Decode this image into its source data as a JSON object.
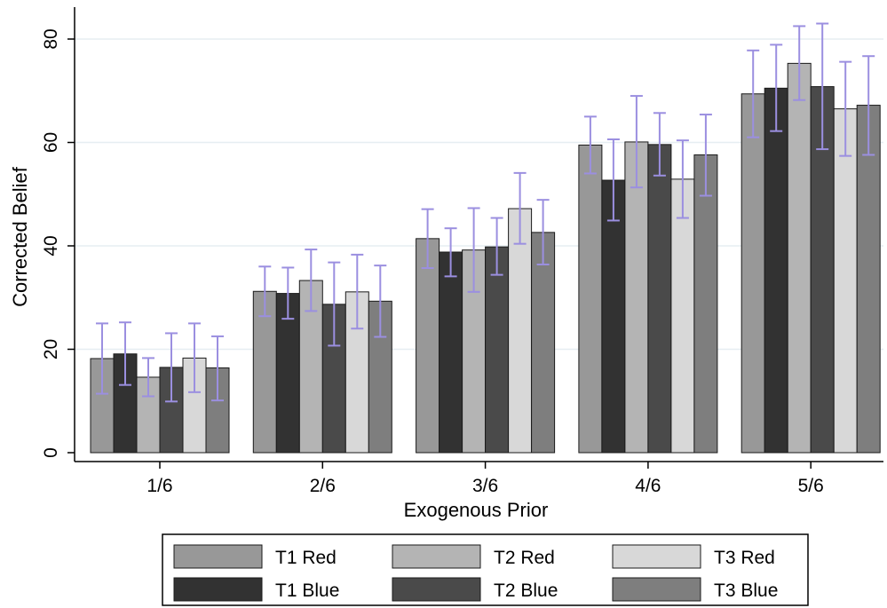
{
  "chart_data": {
    "type": "bar",
    "xlabel": "Exogenous Prior",
    "ylabel": "Corrected Belief",
    "ylim": [
      0,
      85
    ],
    "yticks": [
      0,
      20,
      40,
      60,
      80
    ],
    "categories": [
      "1/6",
      "2/6",
      "3/6",
      "4/6",
      "5/6"
    ],
    "grid": true,
    "legend_position": "bottom",
    "series": [
      {
        "name": "T1 Red",
        "color": "#989898",
        "values": [
          18.2,
          31.2,
          41.4,
          59.5,
          69.4
        ],
        "ci_low": [
          11.4,
          26.4,
          35.7,
          54.0,
          61.0
        ],
        "ci_high": [
          25.0,
          36.0,
          47.1,
          65.0,
          77.8
        ]
      },
      {
        "name": "T1 Blue",
        "color": "#323232",
        "values": [
          19.1,
          30.8,
          38.8,
          52.7,
          70.5
        ],
        "ci_low": [
          13.1,
          25.9,
          34.1,
          44.9,
          62.2
        ],
        "ci_high": [
          25.2,
          35.8,
          43.4,
          60.6,
          78.9
        ]
      },
      {
        "name": "T2 Red",
        "color": "#b4b4b4",
        "values": [
          14.6,
          33.3,
          39.2,
          60.1,
          75.3
        ],
        "ci_low": [
          10.9,
          27.4,
          31.1,
          51.3,
          68.2
        ],
        "ci_high": [
          18.3,
          39.3,
          47.3,
          69.0,
          82.5
        ]
      },
      {
        "name": "T2 Blue",
        "color": "#4a4a4a",
        "values": [
          16.5,
          28.7,
          39.8,
          59.6,
          70.8
        ],
        "ci_low": [
          9.9,
          20.7,
          34.4,
          53.6,
          58.7
        ],
        "ci_high": [
          23.1,
          36.8,
          45.4,
          65.7,
          83.0
        ]
      },
      {
        "name": "T3 Red",
        "color": "#d8d8d8",
        "values": [
          18.3,
          31.1,
          47.2,
          52.9,
          66.5
        ],
        "ci_low": [
          11.7,
          24.0,
          40.4,
          45.4,
          57.4
        ],
        "ci_high": [
          25.0,
          38.3,
          54.1,
          60.4,
          75.6
        ]
      },
      {
        "name": "T3 Blue",
        "color": "#7e7e7e",
        "values": [
          16.4,
          29.3,
          42.6,
          57.6,
          67.2
        ],
        "ci_low": [
          10.1,
          22.4,
          36.4,
          49.7,
          57.6
        ],
        "ci_high": [
          22.5,
          36.2,
          48.9,
          65.4,
          76.7
        ]
      }
    ],
    "error_bar_color": "#9b8fe0"
  }
}
